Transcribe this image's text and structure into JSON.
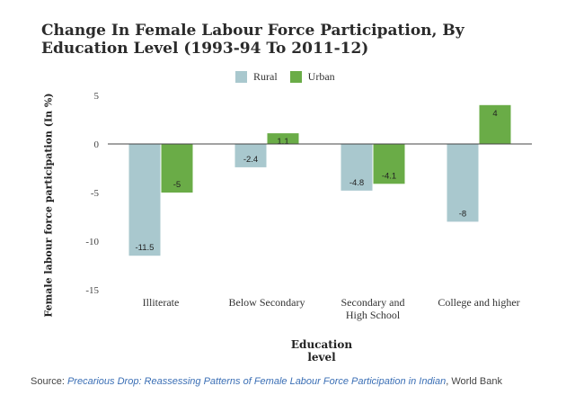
{
  "chart_data": {
    "type": "bar",
    "title": "Change In Female Labour Force Participation, By Education Level (1993-94 To 2011-12)",
    "xlabel": "Education level",
    "ylabel": "Female labour force participation (In %)",
    "categories": [
      "Illiterate",
      "Below Secondary",
      "Secondary and High School",
      "College and higher"
    ],
    "category_lines": [
      [
        "Illiterate"
      ],
      [
        "Below Secondary"
      ],
      [
        "Secondary and",
        "High School"
      ],
      [
        "College and higher"
      ]
    ],
    "series": [
      {
        "name": "Rural",
        "color": "#a9c8ce",
        "values": [
          -11.5,
          -2.4,
          -4.8,
          -8
        ]
      },
      {
        "name": "Urban",
        "color": "#6aac47",
        "values": [
          -5,
          1.1,
          -4.1,
          4
        ]
      }
    ],
    "ylim": [
      -15,
      5
    ],
    "yticks": [
      5,
      0,
      -5,
      -10,
      -15
    ],
    "grid": false,
    "legend_position": "top"
  },
  "source": {
    "prefix": "Source: ",
    "link_text": "Precarious Drop: Reassessing Patterns of Female Labour Force Participation in Indian",
    "suffix": ", World Bank"
  }
}
